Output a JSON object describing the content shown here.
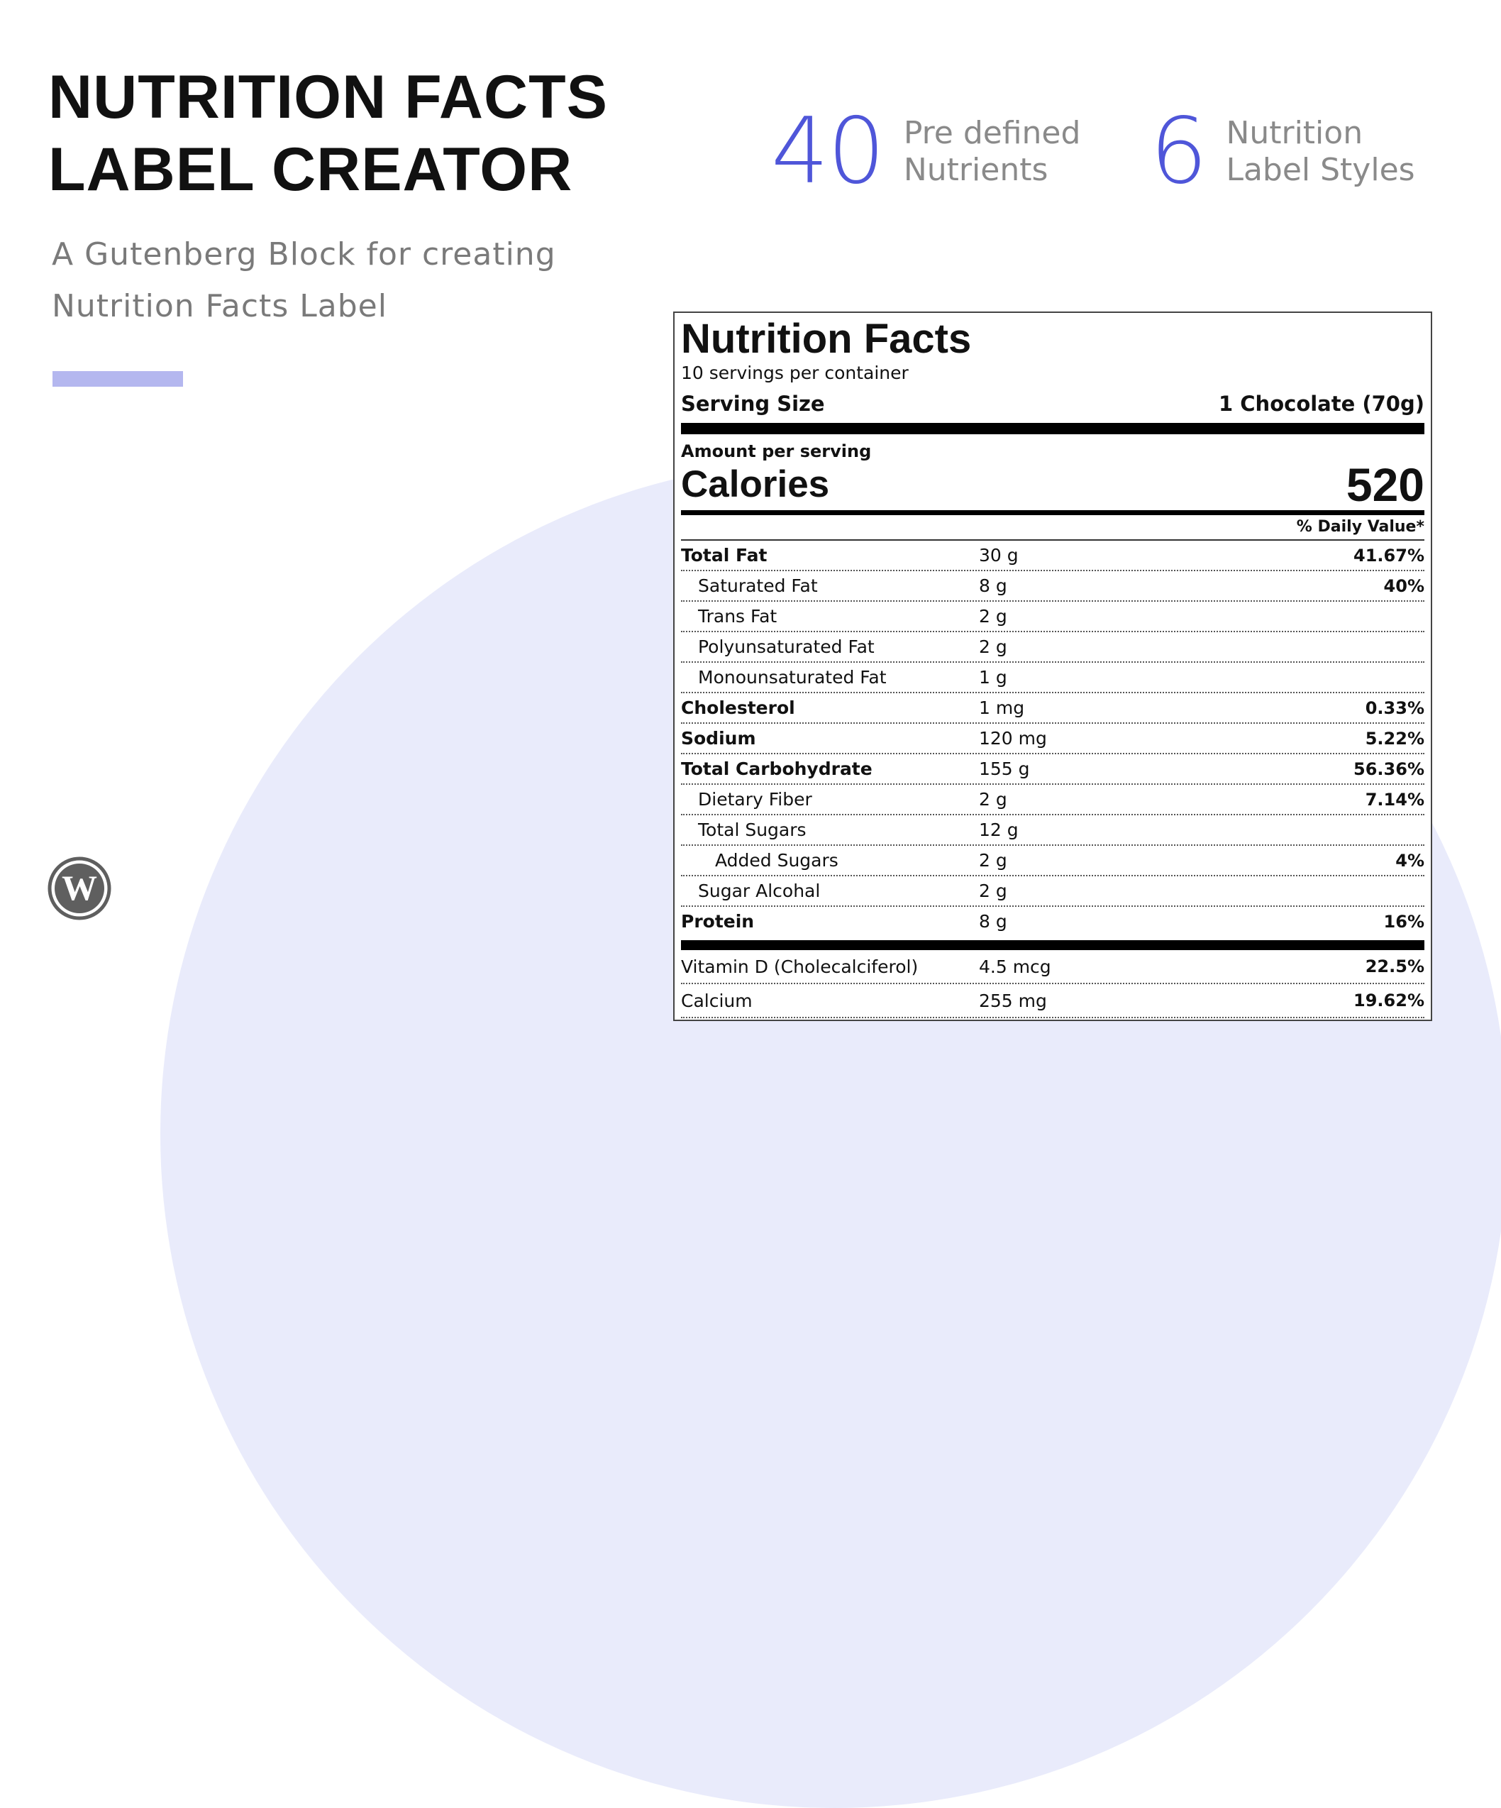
{
  "hero": {
    "title_line1": "NUTRITION FACTS",
    "title_line2": "LABEL CREATOR",
    "subtitle_line1": "A Gutenberg Block for creating",
    "subtitle_line2": "Nutrition Facts Label",
    "accent_color": "#b4b7ef"
  },
  "stats": [
    {
      "number": "40",
      "line1": "Pre defined",
      "line2": "Nutrients"
    },
    {
      "number": "6",
      "line1": "Nutrition",
      "line2": "Label Styles"
    }
  ],
  "colors": {
    "stat_number": "#4f56d9",
    "background_circle": "#e9ebfb",
    "text_muted": "#7a7a7a"
  },
  "footer": {
    "logo_icon": "wordpress-logo-icon"
  },
  "label": {
    "title": "Nutrition Facts",
    "servings": "10 servings per container",
    "serving_size_label": "Serving Size",
    "serving_size_value": "1 Chocolate (70g)",
    "amount_per_serving": "Amount per serving",
    "calories_label": "Calories",
    "calories_value": "520",
    "daily_value_header": "% Daily Value*",
    "nutrients": [
      {
        "name": "Total Fat",
        "amount": "30 g",
        "dv": "41.67%"
      },
      {
        "name": "Saturated Fat",
        "amount": "8 g",
        "dv": "40%"
      },
      {
        "name": "Trans Fat",
        "amount": "2 g",
        "dv": ""
      },
      {
        "name": "Polyunsaturated Fat",
        "amount": "2 g",
        "dv": ""
      },
      {
        "name": "Monounsaturated Fat",
        "amount": "1 g",
        "dv": ""
      },
      {
        "name": "Cholesterol",
        "amount": "1 mg",
        "dv": "0.33%"
      },
      {
        "name": "Sodium",
        "amount": "120 mg",
        "dv": "5.22%"
      },
      {
        "name": "Total Carbohydrate",
        "amount": "155 g",
        "dv": "56.36%"
      },
      {
        "name": "Dietary Fiber",
        "amount": "2 g",
        "dv": "7.14%"
      },
      {
        "name": "Total Sugars",
        "amount": "12 g",
        "dv": ""
      },
      {
        "name": "Added Sugars",
        "amount": "2 g",
        "dv": "4%"
      },
      {
        "name": "Sugar Alcohal",
        "amount": "2 g",
        "dv": ""
      },
      {
        "name": "Protein",
        "amount": "8 g",
        "dv": "16%"
      }
    ],
    "vitamins": [
      {
        "name": "Vitamin D (Cholecalciferol)",
        "amount": "4.5 mcg",
        "dv": "22.5%"
      },
      {
        "name": "Calcium",
        "amount": "255 mg",
        "dv": "19.62%"
      }
    ]
  }
}
